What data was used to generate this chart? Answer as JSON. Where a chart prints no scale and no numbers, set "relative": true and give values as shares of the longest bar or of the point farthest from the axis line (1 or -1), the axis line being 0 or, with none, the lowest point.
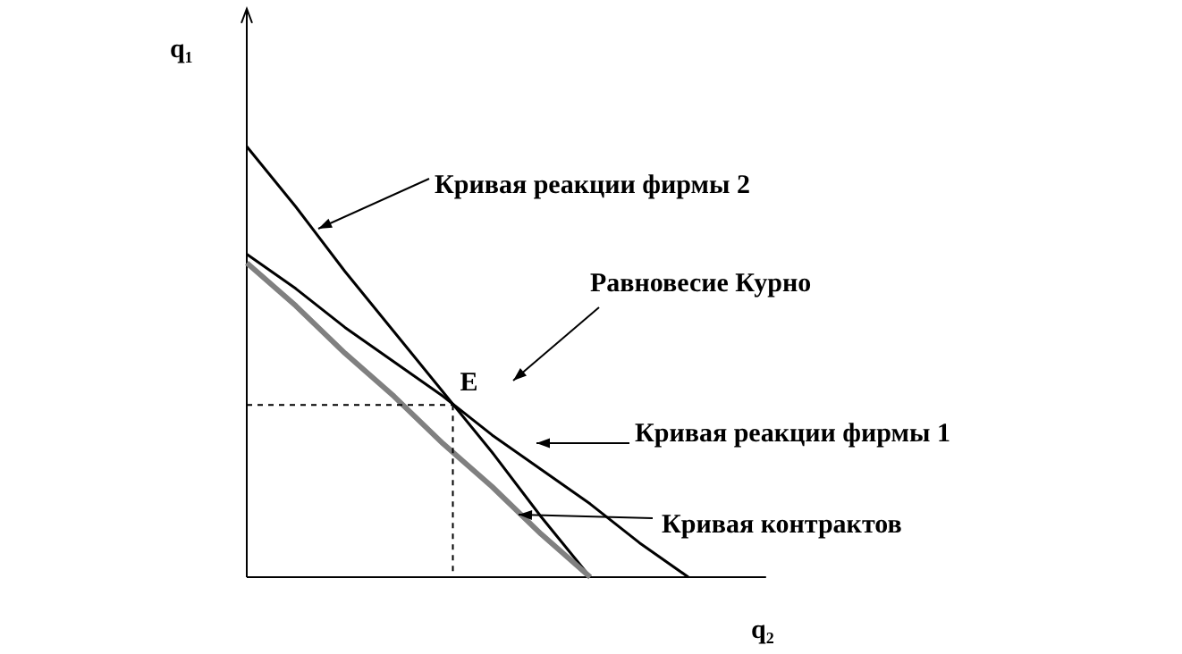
{
  "chart_data": {
    "type": "line",
    "relative": true,
    "xlabel": "q₂",
    "ylabel": "q₁",
    "categories": [
      null,
      null,
      null,
      null,
      null,
      null,
      null,
      null,
      null,
      null,
      null
    ],
    "series": [
      {
        "color": "#000000",
        "values": [
          1,
          0.86,
          0.71,
          0.57,
          0.43,
          0.29,
          0.14,
          0,
          null,
          null,
          null
        ]
      },
      {
        "color": "#000000",
        "values": [
          0.75,
          0.67,
          0.58,
          0.5,
          0.42,
          0.33,
          0.25,
          0.17,
          0.08,
          0,
          null
        ]
      },
      {
        "color": "#808080",
        "values": [
          0.73,
          0.63,
          0.52,
          0.42,
          0.31,
          0.21,
          0.1,
          0,
          null,
          null,
          null
        ]
      }
    ],
    "annotations": [
      "Кривая реакции фирмы 2",
      "Равновесие Курно",
      "Кривая реакции фирмы 1",
      "Кривая контрактов",
      "E"
    ]
  }
}
